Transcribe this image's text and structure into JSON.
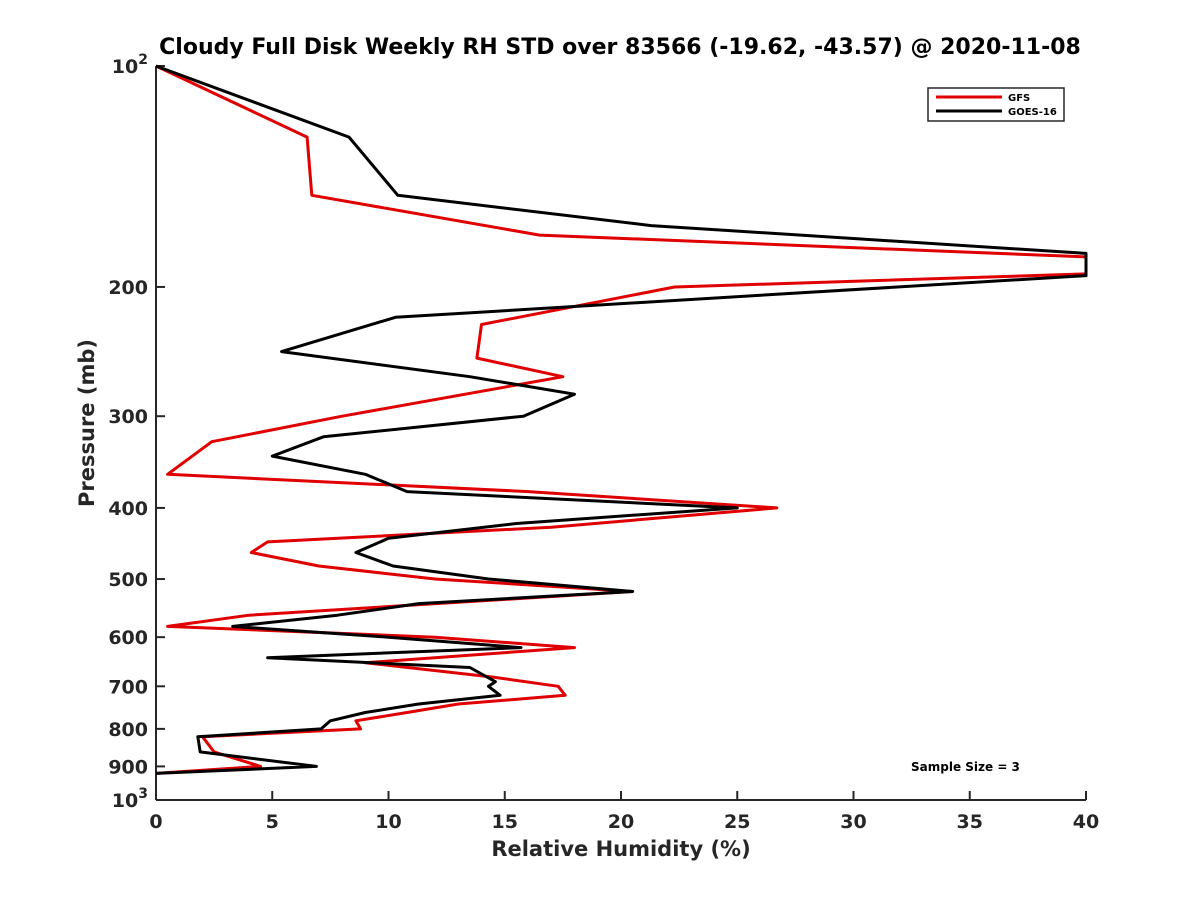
{
  "chart_data": {
    "type": "line",
    "title": "Cloudy Full Disk Weekly RH STD over 83566 (-19.62, -43.57) @ 2020-11-08",
    "xlabel": "Relative Humidity (%)",
    "ylabel": "Pressure (mb)",
    "xlim": [
      0,
      40
    ],
    "ylim": [
      100,
      1000
    ],
    "y_scale": "log",
    "y_reversed": true,
    "grid": false,
    "x_ticks": [
      "0",
      "5",
      "10",
      "15",
      "20",
      "25",
      "30",
      "35",
      "40"
    ],
    "y_ticks": [
      {
        "value": 100,
        "base": "10",
        "exp": "2"
      },
      {
        "value": 200,
        "label": "200"
      },
      {
        "value": 300,
        "label": "300"
      },
      {
        "value": 400,
        "label": "400"
      },
      {
        "value": 500,
        "label": "500"
      },
      {
        "value": 600,
        "label": "600"
      },
      {
        "value": 700,
        "label": "700"
      },
      {
        "value": 800,
        "label": "800"
      },
      {
        "value": 900,
        "label": "900"
      },
      {
        "value": 1000,
        "base": "10",
        "exp": "3"
      }
    ],
    "legend_position": "top-right",
    "series": [
      {
        "name": "GFS",
        "color": "#e00000",
        "points": [
          [
            0,
            100
          ],
          [
            6.5,
            125
          ],
          [
            6.7,
            150
          ],
          [
            16.5,
            170
          ],
          [
            40,
            182
          ],
          [
            40,
            192
          ],
          [
            22.3,
            200
          ],
          [
            14,
            225
          ],
          [
            13.8,
            250
          ],
          [
            17.5,
            265
          ],
          [
            8,
            300
          ],
          [
            2.4,
            325
          ],
          [
            0.5,
            360
          ],
          [
            16,
            380
          ],
          [
            26.7,
            400
          ],
          [
            17,
            425
          ],
          [
            4.8,
            445
          ],
          [
            4.1,
            460
          ],
          [
            7,
            480
          ],
          [
            12,
            500
          ],
          [
            20.5,
            520
          ],
          [
            4,
            560
          ],
          [
            0.5,
            580
          ],
          [
            12,
            600
          ],
          [
            18,
            620
          ],
          [
            9,
            650
          ],
          [
            14.5,
            680
          ],
          [
            17.3,
            700
          ],
          [
            17.6,
            720
          ],
          [
            13,
            740
          ],
          [
            10.8,
            760
          ],
          [
            8.6,
            780
          ],
          [
            8.8,
            800
          ],
          [
            2,
            820
          ],
          [
            2.5,
            860
          ],
          [
            4.5,
            900
          ],
          [
            0,
            920
          ]
        ]
      },
      {
        "name": "GOES-16",
        "color": "#000000",
        "points": [
          [
            0,
            100
          ],
          [
            8.3,
            125
          ],
          [
            10.4,
            150
          ],
          [
            21.3,
            165
          ],
          [
            40,
            180
          ],
          [
            40,
            193
          ],
          [
            10.3,
            220
          ],
          [
            5.4,
            245
          ],
          [
            13.5,
            265
          ],
          [
            18,
            280
          ],
          [
            15.8,
            300
          ],
          [
            7.2,
            320
          ],
          [
            5,
            340
          ],
          [
            9,
            360
          ],
          [
            10.8,
            380
          ],
          [
            25,
            400
          ],
          [
            15.5,
            420
          ],
          [
            10,
            440
          ],
          [
            8.6,
            460
          ],
          [
            10.2,
            480
          ],
          [
            14.3,
            500
          ],
          [
            20.5,
            520
          ],
          [
            11.3,
            540
          ],
          [
            7.8,
            560
          ],
          [
            3.3,
            580
          ],
          [
            10,
            600
          ],
          [
            15.7,
            620
          ],
          [
            4.8,
            640
          ],
          [
            13.5,
            660
          ],
          [
            14.6,
            690
          ],
          [
            14.3,
            700
          ],
          [
            14.8,
            720
          ],
          [
            11.3,
            740
          ],
          [
            9,
            760
          ],
          [
            7.5,
            780
          ],
          [
            7.1,
            800
          ],
          [
            1.8,
            820
          ],
          [
            1.9,
            860
          ],
          [
            6.9,
            900
          ],
          [
            0,
            920
          ]
        ]
      }
    ],
    "annotations": [
      {
        "text": "Sample Size = 3"
      }
    ]
  }
}
